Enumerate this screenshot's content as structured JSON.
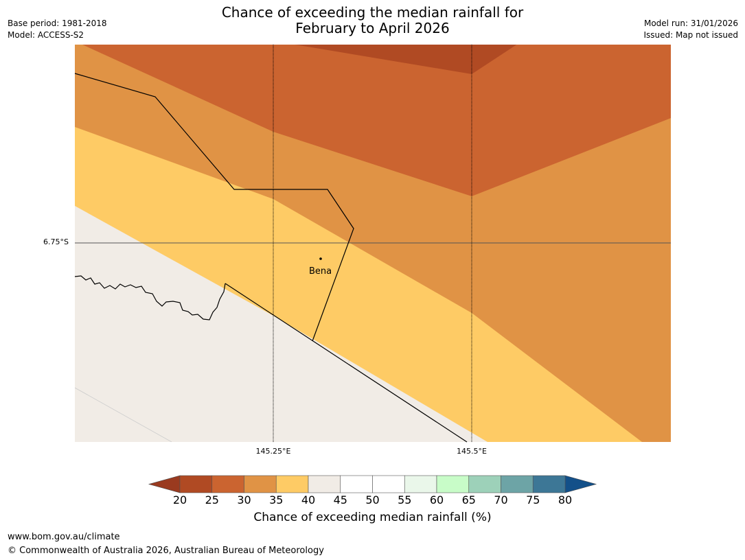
{
  "header": {
    "title_line1": "Chance of exceeding the median rainfall for",
    "title_line2": "February to April 2026",
    "base_period": "Base period: 1981-2018",
    "model": "Model: ACCESS-S2",
    "model_run": "Model run: 31/01/2026",
    "issued": "Issued: Map not issued"
  },
  "map": {
    "lat_label": "6.75°S",
    "lon_labels": [
      "145.25°E",
      "145.5°E"
    ],
    "place": "Bena"
  },
  "legend": {
    "ticks": [
      "20",
      "25",
      "30",
      "35",
      "40",
      "45",
      "50",
      "55",
      "60",
      "65",
      "70",
      "75",
      "80"
    ],
    "label": "Chance of exceeding median rainfall (%)",
    "colors": {
      "below20": "#9a3a1f",
      "c20_25": "#b04a23",
      "c25_30": "#cb6430",
      "c30_35": "#e09345",
      "c35_40": "#fecb65",
      "c40_45": "#f1ece6",
      "c45_50": "#ffffff",
      "c50_55": "#ffffff",
      "c55_60": "#eaf7ea",
      "c60_65": "#c8fcc8",
      "c65_70": "#9dd1b9",
      "c70_75": "#6da4a6",
      "c75_80": "#3d7796",
      "above80": "#135089"
    }
  },
  "footer": {
    "url": "www.bom.gov.au/climate",
    "copyright": "© Commonwealth of Australia 2026, Australian Bureau of Meteorology"
  }
}
